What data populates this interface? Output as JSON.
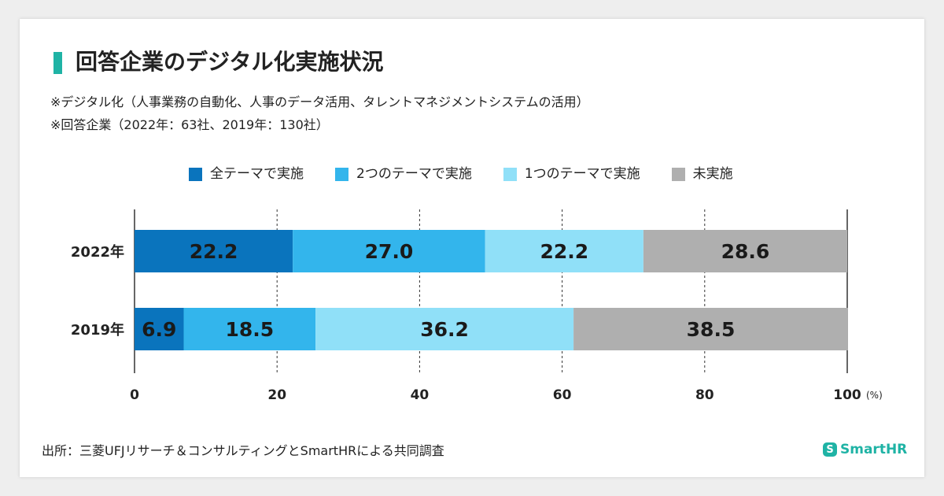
{
  "title": "回答企業のデジタル化実施状況",
  "notes": [
    "※デジタル化（人事業務の自動化、人事のデータ活用、タレントマネジメントシステムの活用）",
    "※回答企業（2022年：63社、2019年：130社）"
  ],
  "source": "出所：三菱UFJリサーチ＆コンサルティングとSmartHRによる共同調査",
  "brand": {
    "name": "SmartHR",
    "icon": "smarthr-logo-icon",
    "color": "#1fb3a5"
  },
  "colors": {
    "accent": "#1fb3a5"
  },
  "chart_data": {
    "type": "bar",
    "orientation": "horizontal",
    "stacked": true,
    "categories": [
      "2022年",
      "2019年"
    ],
    "series": [
      {
        "name": "全テーマで実施",
        "color": "#0a74bd",
        "values": [
          22.2,
          6.9
        ]
      },
      {
        "name": "2つのテーマで実施",
        "color": "#33b5ec",
        "values": [
          27.0,
          18.5
        ]
      },
      {
        "name": "1つのテーマで実施",
        "color": "#90e0f8",
        "values": [
          22.2,
          36.2
        ]
      },
      {
        "name": "未実施",
        "color": "#afafaf",
        "values": [
          28.6,
          38.5
        ]
      }
    ],
    "x_ticks": [
      "0",
      "20",
      "40",
      "60",
      "80",
      "100"
    ],
    "x_unit": "(%)",
    "xlim": [
      0,
      100
    ],
    "grid": "dashed vertical",
    "legend": "top"
  }
}
